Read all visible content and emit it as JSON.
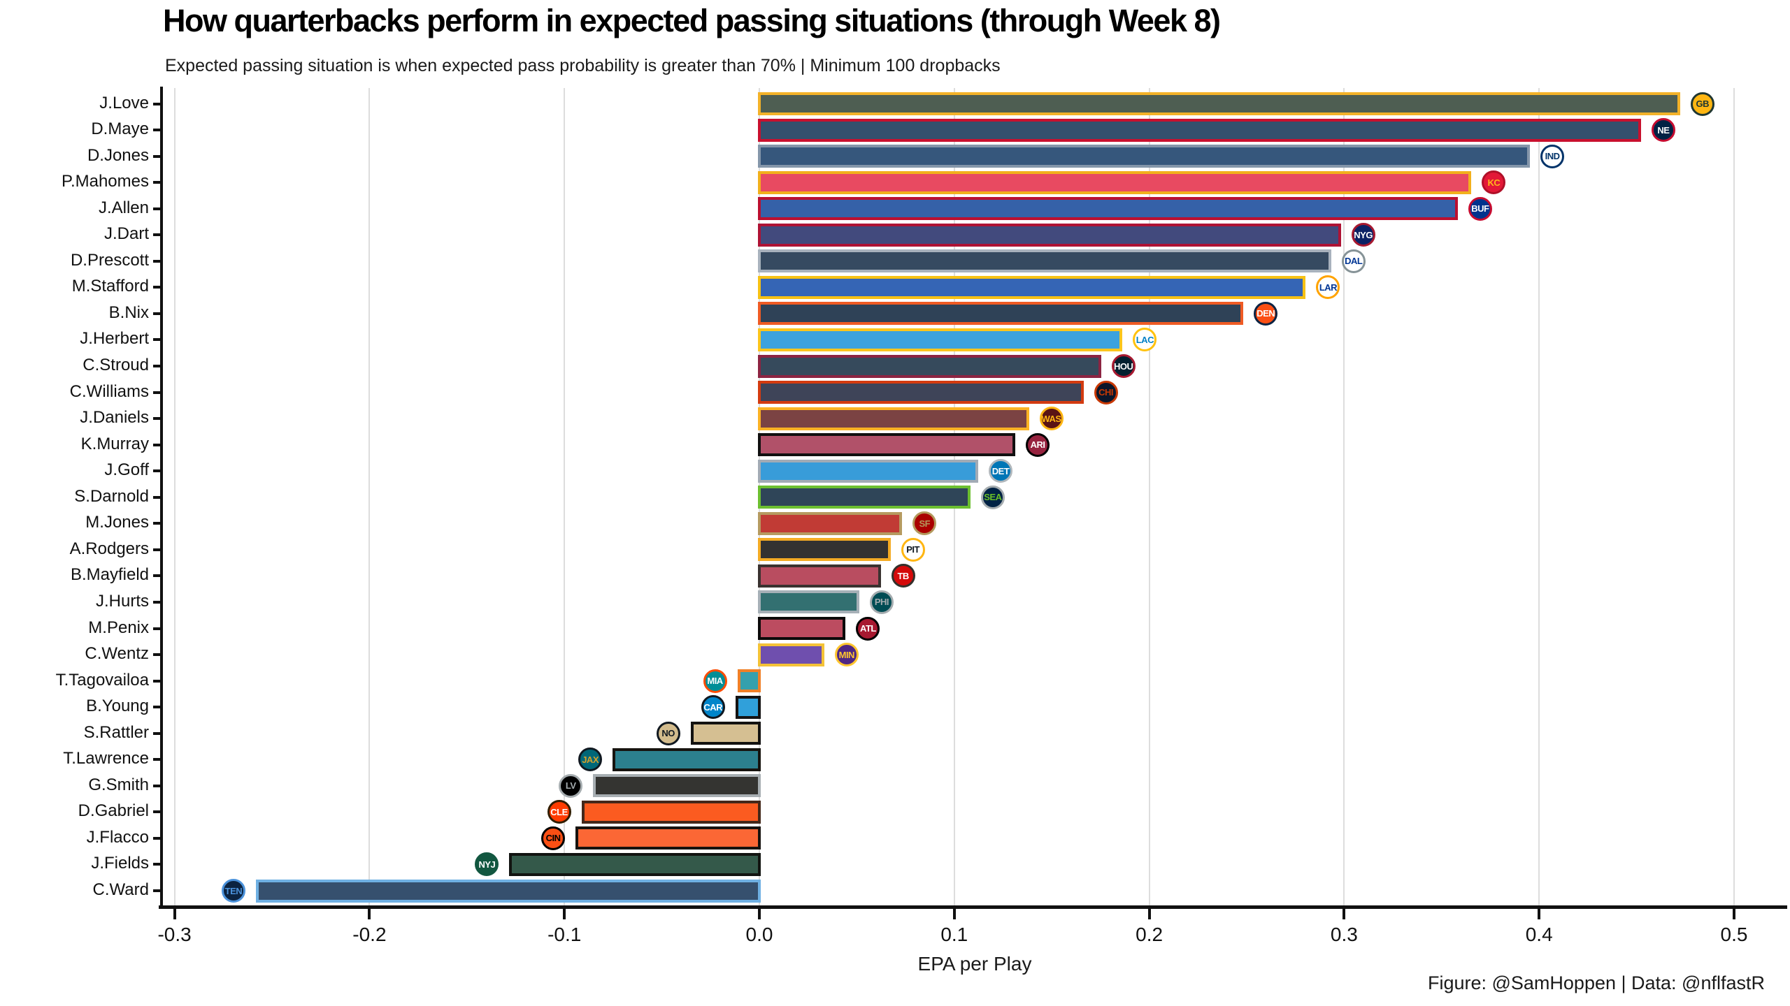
{
  "page": {
    "title": "How quarterbacks perform in expected passing situations (through Week 8)",
    "subtitle": "Expected passing situation is when expected pass probability is greater than 70% | Minimum 100 dropbacks",
    "footer": "Figure: @SamHoppen | Data: @nflfastR"
  },
  "chart_data": {
    "type": "bar",
    "orientation": "horizontal",
    "title": "How quarterbacks perform in expected passing situations (through Week 8)",
    "subtitle": "Expected passing situation is when expected pass probability is greater than 70% | Minimum 100 dropbacks",
    "xlabel": "EPA per Play",
    "ylabel": "",
    "xlim": [
      -0.31,
      0.53
    ],
    "xticks": [
      -0.3,
      -0.2,
      -0.1,
      0.0,
      0.1,
      0.2,
      0.3,
      0.4,
      0.5
    ],
    "xtick_labels": [
      "-0.3",
      "-0.2",
      "-0.1",
      "0.0",
      "0.1",
      "0.2",
      "0.3",
      "0.4",
      "0.5"
    ],
    "grid": "vertical major gridlines, light gray",
    "legend": "none",
    "note": "Each bar filled with team primary color, outlined with team secondary color, team logo at bar end",
    "bars": [
      {
        "qb": "J.Love",
        "team": "Green Bay Packers",
        "abbr": "GB",
        "value": 0.473,
        "fill": "#4e5e52",
        "outline": "#f3b229",
        "logo_bg": "#FFB612",
        "logo_fg": "#203731",
        "logo_border": "#203731"
      },
      {
        "qb": "D.Maye",
        "team": "New England Patriots",
        "abbr": "NE",
        "value": 0.453,
        "fill": "#34506d",
        "outline": "#c8102e",
        "logo_bg": "#002244",
        "logo_fg": "#ffffff",
        "logo_border": "#C60C30"
      },
      {
        "qb": "D.Jones",
        "team": "Indianapolis Colts",
        "abbr": "IND",
        "value": 0.396,
        "fill": "#36577c",
        "outline": "#8496aa",
        "logo_bg": "#ffffff",
        "logo_fg": "#013369",
        "logo_border": "#013369"
      },
      {
        "qb": "P.Mahomes",
        "team": "Kansas City Chiefs",
        "abbr": "KC",
        "value": 0.366,
        "fill": "#e84a61",
        "outline": "#f2b01c",
        "logo_bg": "#E31837",
        "logo_fg": "#FFB81C",
        "logo_border": "#b01028"
      },
      {
        "qb": "J.Allen",
        "team": "Buffalo Bills",
        "abbr": "BUF",
        "value": 0.359,
        "fill": "#3561a8",
        "outline": "#bb1031",
        "logo_bg": "#00338D",
        "logo_fg": "#ffffff",
        "logo_border": "#C60C30"
      },
      {
        "qb": "J.Dart",
        "team": "New York Giants",
        "abbr": "NYG",
        "value": 0.299,
        "fill": "#424a7d",
        "outline": "#ae1335",
        "logo_bg": "#0B2265",
        "logo_fg": "#ffffff",
        "logo_border": "#A71930"
      },
      {
        "qb": "D.Prescott",
        "team": "Dallas Cowboys",
        "abbr": "DAL",
        "value": 0.294,
        "fill": "#364a61",
        "outline": "#a8b2bd",
        "logo_bg": "#ffffff",
        "logo_fg": "#003594",
        "logo_border": "#869397"
      },
      {
        "qb": "M.Stafford",
        "team": "Los Angeles Rams",
        "abbr": "LAR",
        "value": 0.281,
        "fill": "#3565b5",
        "outline": "#f6c114",
        "logo_bg": "#ffffff",
        "logo_fg": "#003594",
        "logo_border": "#FFA300"
      },
      {
        "qb": "B.Nix",
        "team": "Denver Broncos",
        "abbr": "DEN",
        "value": 0.249,
        "fill": "#2f4257",
        "outline": "#ef5b24",
        "logo_bg": "#FB4F14",
        "logo_fg": "#ffffff",
        "logo_border": "#0A2343"
      },
      {
        "qb": "J.Herbert",
        "team": "Los Angeles Chargers",
        "abbr": "LAC",
        "value": 0.187,
        "fill": "#3ca2dd",
        "outline": "#fcc51d",
        "logo_bg": "#ffffff",
        "logo_fg": "#0080C6",
        "logo_border": "#FFC20E"
      },
      {
        "qb": "C.Stroud",
        "team": "Houston Texans",
        "abbr": "HOU",
        "value": 0.176,
        "fill": "#364a5c",
        "outline": "#8c2442",
        "logo_bg": "#03202F",
        "logo_fg": "#ffffff",
        "logo_border": "#A71930"
      },
      {
        "qb": "C.Williams",
        "team": "Chicago Bears",
        "abbr": "CHI",
        "value": 0.167,
        "fill": "#3e4458",
        "outline": "#d33b10",
        "logo_bg": "#0B162A",
        "logo_fg": "#C83803",
        "logo_border": "#C83803"
      },
      {
        "qb": "J.Daniels",
        "team": "Washington Commanders",
        "abbr": "WAS",
        "value": 0.139,
        "fill": "#7b4343",
        "outline": "#fbb224",
        "logo_bg": "#5A1414",
        "logo_fg": "#FFB612",
        "logo_border": "#FFB612"
      },
      {
        "qb": "K.Murray",
        "team": "Arizona Cardinals",
        "abbr": "ARI",
        "value": 0.132,
        "fill": "#b15169",
        "outline": "#111010",
        "logo_bg": "#97233F",
        "logo_fg": "#ffffff",
        "logo_border": "#000000"
      },
      {
        "qb": "J.Goff",
        "team": "Detroit Lions",
        "abbr": "DET",
        "value": 0.113,
        "fill": "#389cd9",
        "outline": "#a2abb5",
        "logo_bg": "#0076B6",
        "logo_fg": "#ffffff",
        "logo_border": "#B0B7BC"
      },
      {
        "qb": "S.Darnold",
        "team": "Seattle Seahawks",
        "abbr": "SEA",
        "value": 0.109,
        "fill": "#2f4558",
        "outline": "#6cbf30",
        "logo_bg": "#002244",
        "logo_fg": "#69BE28",
        "logo_border": "#A5ACAF"
      },
      {
        "qb": "M.Jones",
        "team": "San Francisco 49ers",
        "abbr": "SF",
        "value": 0.074,
        "fill": "#c13b35",
        "outline": "#b69a60",
        "logo_bg": "#AA0000",
        "logo_fg": "#B3995D",
        "logo_border": "#B3995D"
      },
      {
        "qb": "A.Rodgers",
        "team": "Pittsburgh Steelers",
        "abbr": "PIT",
        "value": 0.068,
        "fill": "#333231",
        "outline": "#f4ab24",
        "logo_bg": "#ffffff",
        "logo_fg": "#101820",
        "logo_border": "#FFB612"
      },
      {
        "qb": "B.Mayfield",
        "team": "Tampa Bay Buccaneers",
        "abbr": "TB",
        "value": 0.063,
        "fill": "#b94d60",
        "outline": "#3a3230",
        "logo_bg": "#D50A0A",
        "logo_fg": "#ffffff",
        "logo_border": "#34302B"
      },
      {
        "qb": "J.Hurts",
        "team": "Philadelphia Eagles",
        "abbr": "PHI",
        "value": 0.052,
        "fill": "#337071",
        "outline": "#a6b0b7",
        "logo_bg": "#004C54",
        "logo_fg": "#A5ACAF",
        "logo_border": "#A5ACAF"
      },
      {
        "qb": "M.Penix",
        "team": "Atlanta Falcons",
        "abbr": "ATL",
        "value": 0.045,
        "fill": "#bc4c60",
        "outline": "#0c0a0a",
        "logo_bg": "#A71930",
        "logo_fg": "#ffffff",
        "logo_border": "#000000"
      },
      {
        "qb": "C.Wentz",
        "team": "Minnesota Vikings",
        "abbr": "MIN",
        "value": 0.034,
        "fill": "#6f4fae",
        "outline": "#f4c237",
        "logo_bg": "#4F2683",
        "logo_fg": "#FFC62F",
        "logo_border": "#FFC62F"
      },
      {
        "qb": "T.Tagovailoa",
        "team": "Miami Dolphins",
        "abbr": "MIA",
        "value": -0.012,
        "fill": "#35a0ad",
        "outline": "#f08027",
        "logo_bg": "#008E97",
        "logo_fg": "#ffffff",
        "logo_border": "#FC4C02"
      },
      {
        "qb": "B.Young",
        "team": "Carolina Panthers",
        "abbr": "CAR",
        "value": -0.013,
        "fill": "#30a0da",
        "outline": "#141313",
        "logo_bg": "#0085CA",
        "logo_fg": "#ffffff",
        "logo_border": "#101820"
      },
      {
        "qb": "S.Rattler",
        "team": "New Orleans Saints",
        "abbr": "NO",
        "value": -0.036,
        "fill": "#d5bf92",
        "outline": "#131211",
        "logo_bg": "#D3BC8D",
        "logo_fg": "#101820",
        "logo_border": "#101820"
      },
      {
        "qb": "T.Lawrence",
        "team": "Jacksonville Jaguars",
        "abbr": "JAX",
        "value": -0.076,
        "fill": "#2c808e",
        "outline": "#17140f",
        "logo_bg": "#006778",
        "logo_fg": "#D7A22A",
        "logo_border": "#101820"
      },
      {
        "qb": "G.Smith",
        "team": "Las Vegas Raiders",
        "abbr": "LV",
        "value": -0.086,
        "fill": "#343431",
        "outline": "#a7aeb2",
        "logo_bg": "#000000",
        "logo_fg": "#A5ACAF",
        "logo_border": "#A5ACAF"
      },
      {
        "qb": "D.Gabriel",
        "team": "Cleveland Browns",
        "abbr": "CLE",
        "value": -0.092,
        "fill": "#fb5b20",
        "outline": "#44281a",
        "logo_bg": "#FF3C00",
        "logo_fg": "#ffffff",
        "logo_border": "#311D00"
      },
      {
        "qb": "J.Flacco",
        "team": "Cincinnati Bengals",
        "abbr": "CIN",
        "value": -0.095,
        "fill": "#fb6735",
        "outline": "#17130f",
        "logo_bg": "#FB4F14",
        "logo_fg": "#000000",
        "logo_border": "#000000"
      },
      {
        "qb": "J.Fields",
        "team": "New York Jets",
        "abbr": "NYJ",
        "value": -0.129,
        "fill": "#34594a",
        "outline": "#121411",
        "logo_bg": "#125740",
        "logo_fg": "#ffffff",
        "logo_border": "#125740"
      },
      {
        "qb": "C.Ward",
        "team": "Tennessee Titans",
        "abbr": "TEN",
        "value": -0.259,
        "fill": "#36506e",
        "outline": "#6fb0e3",
        "logo_bg": "#0C2340",
        "logo_fg": "#4B92DB",
        "logo_border": "#4B92DB"
      }
    ]
  }
}
